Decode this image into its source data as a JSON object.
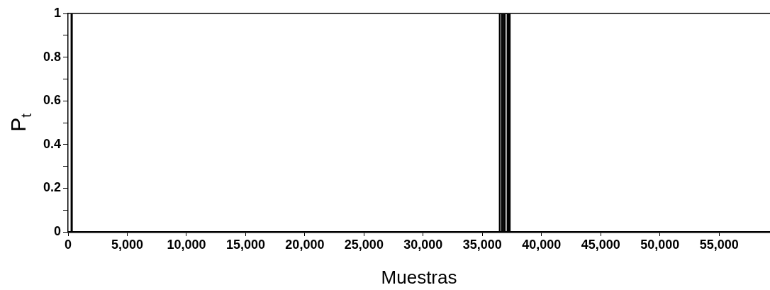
{
  "chart_data": {
    "type": "line",
    "xlabel": "Muestras",
    "ylabel": "P$_{t}$",
    "series": [
      {
        "color": "#000000",
        "x": [
          0,
          280,
          280,
          330,
          330,
          36460,
          36460,
          36640,
          36640,
          36700,
          36700,
          36840,
          36840,
          36900,
          36900,
          37120,
          37120,
          37200,
          37200,
          37320,
          37320,
          59300
        ],
        "values": [
          0,
          0,
          1,
          1,
          0,
          0,
          1,
          1,
          0,
          0,
          1,
          1,
          0,
          0,
          1,
          1,
          0,
          0,
          1,
          1,
          0,
          0
        ]
      }
    ],
    "xlim": [
      0,
      59300
    ],
    "xticks": [
      0,
      {
        "value": 5000,
        "label": "5,000"
      },
      {
        "value": 10000,
        "label": "10,000"
      },
      {
        "value": 15000,
        "label": "15,000"
      },
      {
        "value": 20000,
        "label": "20,000"
      },
      {
        "value": 25000,
        "label": "25,000"
      },
      {
        "value": 30000,
        "label": "30,000"
      },
      {
        "value": 35000,
        "label": "35,000"
      },
      {
        "value": 40000,
        "label": "40,000"
      },
      {
        "value": 45000,
        "label": "45,000"
      },
      {
        "value": 50000,
        "label": "50,000"
      },
      {
        "value": 55000,
        "label": "55,000"
      }
    ],
    "ylim": [
      0,
      1
    ],
    "yticks": [
      0,
      {
        "value": 0.1,
        "label": null
      },
      0.2,
      {
        "value": 0.3,
        "label": null
      },
      0.4,
      {
        "value": 0.5,
        "label": null
      },
      0.6,
      {
        "value": 0.7,
        "label": null
      },
      0.8,
      {
        "value": 0.9,
        "label": null
      },
      1
    ],
    "grid": false,
    "legend": false,
    "marker": "none",
    "line_style": "solid"
  }
}
